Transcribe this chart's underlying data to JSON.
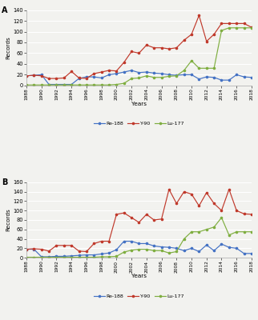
{
  "years": [
    1988,
    1989,
    1990,
    1991,
    1992,
    1993,
    1994,
    1995,
    1996,
    1997,
    1998,
    1999,
    2000,
    2001,
    2002,
    2003,
    2004,
    2005,
    2006,
    2007,
    2008,
    2009,
    2010,
    2011,
    2012,
    2013,
    2014,
    2015,
    2016,
    2017,
    2018
  ],
  "chartA": {
    "Re188": [
      18,
      19,
      20,
      2,
      2,
      2,
      2,
      13,
      16,
      16,
      14,
      20,
      22,
      25,
      28,
      24,
      25,
      23,
      22,
      20,
      19,
      20,
      20,
      12,
      16,
      15,
      10,
      10,
      20,
      16,
      15
    ],
    "Y90": [
      18,
      19,
      18,
      13,
      13,
      14,
      26,
      14,
      13,
      22,
      25,
      28,
      27,
      43,
      63,
      60,
      75,
      70,
      70,
      68,
      70,
      84,
      95,
      130,
      82,
      95,
      115,
      115,
      115,
      115,
      108
    ],
    "Lu177": [
      1,
      1,
      1,
      1,
      1,
      1,
      1,
      1,
      1,
      1,
      1,
      1,
      2,
      4,
      13,
      14,
      18,
      15,
      15,
      17,
      18,
      28,
      46,
      32,
      32,
      32,
      102,
      107,
      107,
      107,
      107
    ]
  },
  "chartB": {
    "Re188": [
      18,
      18,
      2,
      2,
      3,
      3,
      4,
      5,
      6,
      6,
      8,
      10,
      17,
      35,
      35,
      30,
      30,
      25,
      23,
      22,
      20,
      15,
      20,
      13,
      27,
      15,
      29,
      22,
      20,
      9,
      9
    ],
    "Y90": [
      18,
      19,
      18,
      14,
      26,
      26,
      26,
      14,
      13,
      30,
      35,
      35,
      92,
      95,
      85,
      75,
      92,
      80,
      82,
      145,
      115,
      140,
      135,
      110,
      138,
      115,
      100,
      145,
      100,
      93,
      92
    ],
    "Lu177": [
      1,
      1,
      1,
      1,
      1,
      1,
      1,
      1,
      1,
      1,
      2,
      2,
      3,
      12,
      16,
      18,
      18,
      15,
      15,
      10,
      13,
      40,
      55,
      55,
      60,
      65,
      85,
      48,
      55,
      55,
      55
    ]
  },
  "Re188_color": "#4472c4",
  "Y90_color": "#c0392b",
  "Lu177_color": "#7fae40",
  "bg_color": "#f2f2ef",
  "plot_bg": "#f2f2ef",
  "ylimA": [
    0,
    140
  ],
  "ylimB": [
    0,
    160
  ],
  "yticks_A": [
    0,
    20,
    40,
    60,
    80,
    100,
    120,
    140
  ],
  "yticks_B": [
    0,
    20,
    40,
    60,
    80,
    100,
    120,
    140,
    160
  ]
}
